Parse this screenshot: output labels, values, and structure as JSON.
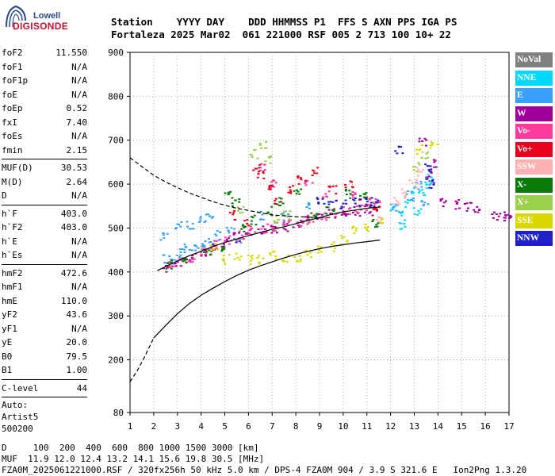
{
  "logo": {
    "top": "Lowell",
    "bottom": "DIGISONDE"
  },
  "header": {
    "line1": "Station    YYYY DAY    DDD HHMMSS P1  FFS S AXN PPS IGA PS",
    "line2": "Fortaleza 2025 Mar02  061 221000 RSF 005 2 713 100 10+ 22"
  },
  "params_group1": [
    {
      "label": "foF2",
      "value": "11.550"
    },
    {
      "label": "foF1",
      "value": "N/A"
    },
    {
      "label": "foF1p",
      "value": "N/A"
    },
    {
      "label": "foE",
      "value": "N/A"
    },
    {
      "label": "foEp",
      "value": "0.52"
    },
    {
      "label": "fxI",
      "value": "7.40"
    },
    {
      "label": "foEs",
      "value": "N/A"
    },
    {
      "label": "fmin",
      "value": "2.15"
    }
  ],
  "params_group2": [
    {
      "label": "MUF(D)",
      "value": "30.53"
    },
    {
      "label": "M(D)",
      "value": "2.64"
    },
    {
      "label": "D",
      "value": "N/A"
    }
  ],
  "params_group3": [
    {
      "label": "h`F",
      "value": "403.0"
    },
    {
      "label": "h`F2",
      "value": "403.0"
    },
    {
      "label": "h`E",
      "value": "N/A"
    },
    {
      "label": "h`Es",
      "value": "N/A"
    }
  ],
  "params_group4": [
    {
      "label": "hmF2",
      "value": "472.6"
    },
    {
      "label": "hmF1",
      "value": "N/A"
    },
    {
      "label": "hmE",
      "value": "110.0"
    },
    {
      "label": "yF2",
      "value": "43.6"
    },
    {
      "label": "yF1",
      "value": "N/A"
    },
    {
      "label": "yE",
      "value": "20.0"
    },
    {
      "label": "B0",
      "value": "79.5"
    },
    {
      "label": "B1",
      "value": "1.00"
    }
  ],
  "params_group5": [
    {
      "label": "C-level",
      "value": "44"
    }
  ],
  "auto_block": [
    "Auto:",
    "Artist5",
    "500200"
  ],
  "legend": [
    {
      "label": "NoVal",
      "color": "#808080"
    },
    {
      "label": "NNE",
      "color": "#00d8ff"
    },
    {
      "label": "E",
      "color": "#3aa0ff"
    },
    {
      "label": "W",
      "color": "#a0009a"
    },
    {
      "label": "Vo-",
      "color": "#ff3c9e"
    },
    {
      "label": "Vo+",
      "color": "#e8001c"
    },
    {
      "label": "SSW",
      "color": "#ffb0b0"
    },
    {
      "label": "X-",
      "color": "#0a7a0a"
    },
    {
      "label": "X+",
      "color": "#9ad04a"
    },
    {
      "label": "SSE",
      "color": "#d8d800"
    },
    {
      "label": "NNW",
      "color": "#2020c8"
    }
  ],
  "footer": {
    "line1": "D     100  200  400  600  800 1000 1500 3000 [km]",
    "line2": "MUF  11.9 12.0 12.4 13.2 14.1 15.6 19.8 30.5 [MHz]",
    "line3": "FZA0M_2025061221000.RSF / 320fx256h 50 kHz 5.0 km / DPS-4 FZA0M 904 / 3.9 S 321.6 E   Ion2Png 1.3.20"
  },
  "chart_data": {
    "type": "scatter",
    "xlim": [
      1,
      17
    ],
    "ylim": [
      80,
      900
    ],
    "x_ticks": [
      "1",
      "2",
      "3",
      "4",
      "5",
      "6",
      "7",
      "8",
      "9",
      "10",
      "11",
      "12",
      "13",
      "14",
      "15",
      "16",
      "17"
    ],
    "y_ticks": [
      "80",
      "200",
      "300",
      "400",
      "500",
      "600",
      "700",
      "800",
      "900"
    ],
    "y_tick_values": [
      80,
      200,
      300,
      400,
      500,
      600,
      700,
      800,
      900
    ],
    "grid": true,
    "series": [
      {
        "label": "NNE",
        "points": [
          [
            12.1,
            550
          ],
          [
            12.4,
            530
          ],
          [
            12.7,
            560
          ],
          [
            13.0,
            590
          ],
          [
            13.3,
            580
          ],
          [
            13.5,
            600
          ],
          [
            13.6,
            620
          ],
          [
            12.5,
            510
          ],
          [
            13.1,
            540
          ]
        ]
      },
      {
        "label": "E",
        "points": [
          [
            2.5,
            430
          ],
          [
            2.8,
            420
          ],
          [
            3.1,
            445
          ],
          [
            3.4,
            455
          ],
          [
            3.7,
            460
          ],
          [
            4.0,
            470
          ],
          [
            4.3,
            468
          ],
          [
            4.7,
            485
          ],
          [
            5.2,
            500
          ],
          [
            5.5,
            470
          ],
          [
            2.4,
            480
          ],
          [
            3.0,
            505
          ],
          [
            3.5,
            510
          ],
          [
            4.0,
            520
          ],
          [
            4.3,
            530
          ],
          [
            6.5,
            530
          ],
          [
            7.5,
            530
          ],
          [
            8.5,
            550
          ],
          [
            12.2,
            545
          ],
          [
            12.8,
            575
          ],
          [
            13.2,
            600
          ],
          [
            13.6,
            610
          ],
          [
            13.4,
            560
          ]
        ]
      },
      {
        "label": "W",
        "points": [
          [
            2.5,
            410
          ],
          [
            3.0,
            420
          ],
          [
            3.5,
            430
          ],
          [
            4.0,
            445
          ],
          [
            4.5,
            455
          ],
          [
            5.0,
            470
          ],
          [
            5.5,
            480
          ],
          [
            6.0,
            490
          ],
          [
            6.5,
            495
          ],
          [
            7.0,
            500
          ],
          [
            7.5,
            505
          ],
          [
            8.0,
            510
          ],
          [
            8.5,
            520
          ],
          [
            9.0,
            525
          ],
          [
            9.5,
            535
          ],
          [
            10.0,
            538
          ],
          [
            10.5,
            540
          ],
          [
            11.0,
            545
          ],
          [
            13.6,
            620
          ],
          [
            14.2,
            560
          ],
          [
            14.8,
            555
          ],
          [
            15.2,
            550
          ],
          [
            15.6,
            548
          ],
          [
            16.4,
            530
          ],
          [
            16.7,
            530
          ],
          [
            16.9,
            525
          ],
          [
            13.8,
            650
          ],
          [
            13.3,
            695
          ]
        ]
      },
      {
        "label": "Vo-",
        "points": [
          [
            2.7,
            415
          ],
          [
            3.2,
            425
          ],
          [
            3.6,
            435
          ],
          [
            4.1,
            450
          ],
          [
            4.6,
            465
          ],
          [
            5.1,
            475
          ],
          [
            5.6,
            485
          ],
          [
            6.1,
            495
          ],
          [
            6.6,
            500
          ],
          [
            7.1,
            505
          ],
          [
            7.6,
            510
          ],
          [
            8.1,
            515
          ],
          [
            8.6,
            520
          ],
          [
            9.1,
            530
          ],
          [
            9.6,
            535
          ],
          [
            10.1,
            540
          ],
          [
            10.6,
            545
          ],
          [
            11.1,
            550
          ],
          [
            11.4,
            555
          ],
          [
            6.5,
            640
          ],
          [
            7.0,
            600
          ],
          [
            8.5,
            600
          ],
          [
            9.2,
            580
          ],
          [
            10.3,
            578
          ],
          [
            11.2,
            560
          ]
        ]
      },
      {
        "label": "Vo+",
        "points": [
          [
            5.3,
            530
          ],
          [
            5.8,
            510
          ],
          [
            6.3,
            640
          ],
          [
            6.5,
            620
          ],
          [
            6.8,
            600
          ],
          [
            7.2,
            560
          ],
          [
            7.8,
            590
          ],
          [
            8.2,
            610
          ],
          [
            8.8,
            630
          ],
          [
            9.5,
            590
          ],
          [
            10.2,
            600
          ],
          [
            10.8,
            560
          ],
          [
            11.3,
            540
          ]
        ]
      },
      {
        "label": "SSW",
        "points": [
          [
            12.2,
            560
          ],
          [
            12.6,
            580
          ],
          [
            12.9,
            600
          ],
          [
            13.2,
            630
          ],
          [
            11.5,
            520
          ]
        ]
      },
      {
        "label": "X-",
        "points": [
          [
            2.6,
            420
          ],
          [
            3.3,
            430
          ],
          [
            4.2,
            445
          ],
          [
            4.9,
            450
          ],
          [
            5.1,
            580
          ],
          [
            5.4,
            560
          ],
          [
            5.7,
            500
          ],
          [
            6.2,
            520
          ],
          [
            6.9,
            540
          ],
          [
            7.3,
            560
          ],
          [
            8.0,
            580
          ],
          [
            8.7,
            525
          ],
          [
            9.4,
            540
          ],
          [
            10.1,
            580
          ],
          [
            10.8,
            580
          ],
          [
            11.3,
            510
          ]
        ]
      },
      {
        "label": "X+",
        "points": [
          [
            6.6,
            690
          ],
          [
            6.8,
            660
          ],
          [
            6.2,
            670
          ],
          [
            5.6,
            540
          ],
          [
            7.1,
            520
          ],
          [
            7.6,
            530
          ],
          [
            13.0,
            640
          ],
          [
            13.4,
            670
          ]
        ]
      },
      {
        "label": "SSE",
        "points": [
          [
            4.5,
            460
          ],
          [
            5.0,
            430
          ],
          [
            5.5,
            440
          ],
          [
            6.0,
            430
          ],
          [
            6.5,
            430
          ],
          [
            7.0,
            440
          ],
          [
            7.5,
            430
          ],
          [
            8.0,
            435
          ],
          [
            8.5,
            440
          ],
          [
            9.0,
            450
          ],
          [
            9.5,
            460
          ],
          [
            10.0,
            475
          ],
          [
            10.5,
            495
          ],
          [
            11.0,
            505
          ],
          [
            11.5,
            520
          ],
          [
            13.2,
            680
          ],
          [
            13.8,
            690
          ]
        ]
      },
      {
        "label": "NNW",
        "points": [
          [
            9.0,
            560
          ],
          [
            9.5,
            560
          ],
          [
            10.0,
            555
          ],
          [
            10.5,
            560
          ],
          [
            11.0,
            560
          ],
          [
            11.3,
            555
          ],
          [
            13.5,
            640
          ],
          [
            13.7,
            600
          ],
          [
            12.3,
            680
          ]
        ]
      }
    ],
    "profile_solid": {
      "points": [
        [
          2.0,
          250
        ],
        [
          2.5,
          278
        ],
        [
          3.0,
          305
        ],
        [
          3.5,
          328
        ],
        [
          4.0,
          347
        ],
        [
          4.5,
          363
        ],
        [
          5.0,
          378
        ],
        [
          5.5,
          392
        ],
        [
          6.0,
          404
        ],
        [
          6.5,
          414
        ],
        [
          7.0,
          423
        ],
        [
          7.5,
          432
        ],
        [
          8.0,
          440
        ],
        [
          8.5,
          447
        ],
        [
          9.0,
          453
        ],
        [
          9.5,
          458
        ],
        [
          10.0,
          462
        ],
        [
          10.5,
          466
        ],
        [
          11.0,
          469
        ],
        [
          11.55,
          472.6
        ]
      ]
    },
    "profile_dashed_high": {
      "points": [
        [
          1.0,
          660
        ],
        [
          1.5,
          640
        ],
        [
          2.0,
          620
        ],
        [
          2.5,
          605
        ],
        [
          3.0,
          592
        ],
        [
          3.5,
          580
        ],
        [
          4.0,
          570
        ],
        [
          4.5,
          560
        ],
        [
          5.0,
          552
        ],
        [
          5.5,
          545
        ],
        [
          6.0,
          540
        ],
        [
          6.5,
          535
        ],
        [
          7.0,
          530
        ],
        [
          7.5,
          528
        ],
        [
          8.0,
          526
        ],
        [
          8.5,
          525
        ],
        [
          9.0,
          524
        ],
        [
          9.5,
          524
        ]
      ]
    },
    "profile_dashed_low": {
      "points": [
        [
          1.0,
          150
        ],
        [
          1.3,
          175
        ],
        [
          1.6,
          205
        ],
        [
          2.0,
          250
        ]
      ]
    },
    "trace_line": {
      "points": [
        [
          2.15,
          403
        ],
        [
          2.6,
          415
        ],
        [
          3.0,
          425
        ],
        [
          3.5,
          437
        ],
        [
          4.0,
          447
        ],
        [
          4.5,
          458
        ],
        [
          5.0,
          467
        ],
        [
          5.5,
          475
        ],
        [
          6.0,
          483
        ],
        [
          6.5,
          490
        ],
        [
          7.0,
          497
        ],
        [
          7.5,
          503
        ],
        [
          8.0,
          510
        ],
        [
          8.5,
          517
        ],
        [
          9.0,
          524
        ],
        [
          9.5,
          531
        ],
        [
          10.0,
          537
        ],
        [
          10.5,
          541
        ],
        [
          11.0,
          545
        ],
        [
          11.55,
          548
        ]
      ]
    }
  }
}
